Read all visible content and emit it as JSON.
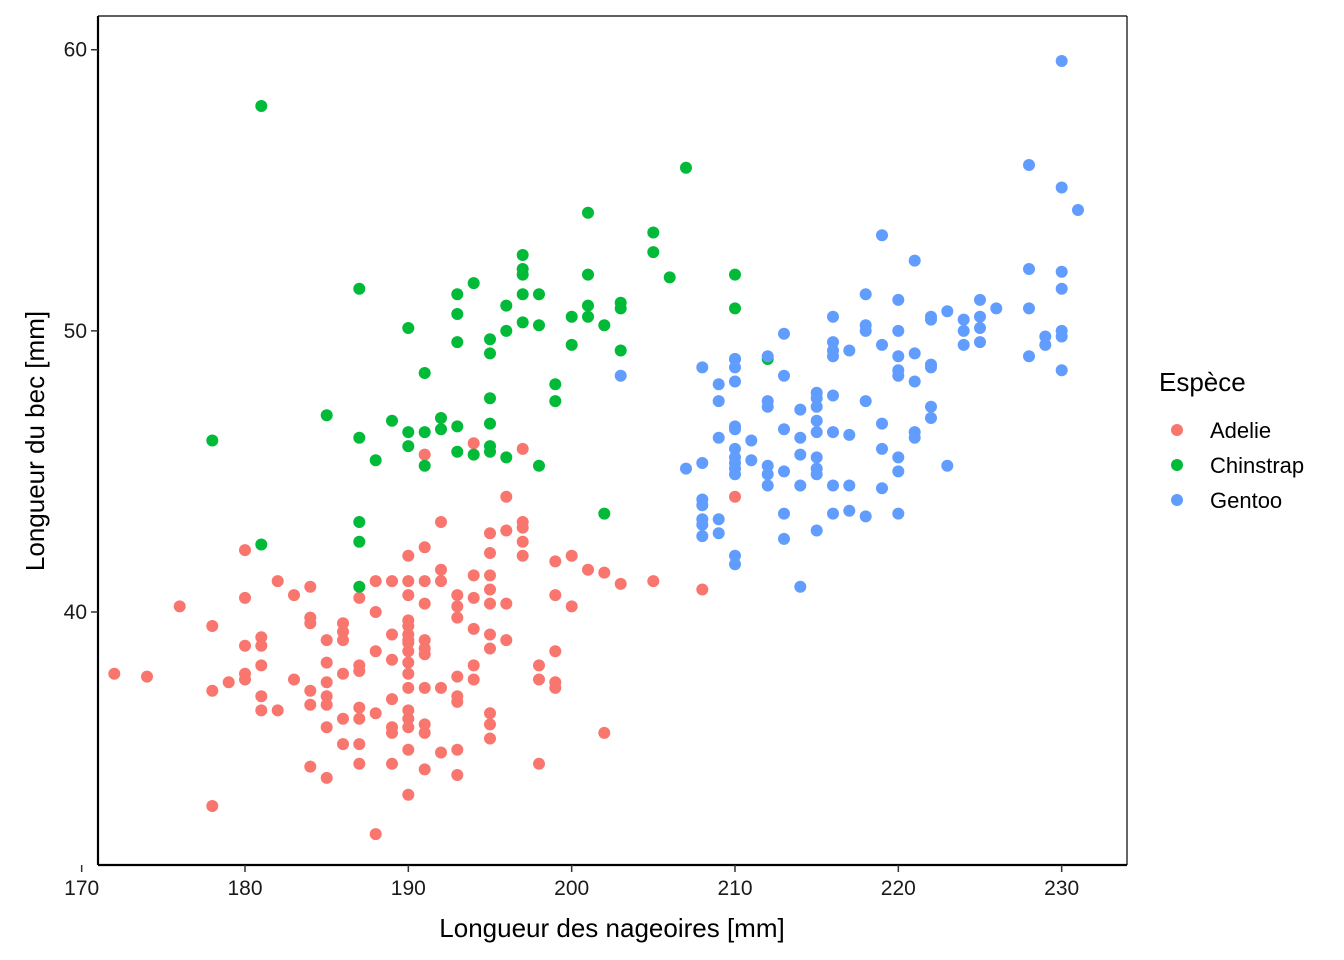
{
  "chart_data": {
    "type": "scatter",
    "title": "",
    "xlabel": "Longueur des nageoires  [mm]",
    "ylabel": "Longueur du bec  [mm]",
    "xlim": [
      171,
      234
    ],
    "ylim": [
      31,
      61.2
    ],
    "xticks": [
      170,
      180,
      190,
      200,
      210,
      220,
      230
    ],
    "yticks": [
      40,
      50,
      60
    ],
    "grid": false,
    "legend": {
      "title": "Espèce",
      "placement": "right"
    },
    "series": [
      {
        "name": "Adelie",
        "color": "#F8766D",
        "points": [
          [
            172,
            37.8
          ],
          [
            174,
            37.7
          ],
          [
            176,
            40.2
          ],
          [
            178,
            39.5
          ],
          [
            178,
            37.2
          ],
          [
            178,
            33.1
          ],
          [
            179,
            37.5
          ],
          [
            180,
            42.2
          ],
          [
            180,
            40.5
          ],
          [
            180,
            38.8
          ],
          [
            180,
            37.8
          ],
          [
            180,
            37.6
          ],
          [
            181,
            39.1
          ],
          [
            181,
            38.8
          ],
          [
            181,
            38.1
          ],
          [
            181,
            36.5
          ],
          [
            181,
            37.0
          ],
          [
            182,
            41.1
          ],
          [
            182,
            36.5
          ],
          [
            183,
            40.6
          ],
          [
            183,
            37.6
          ],
          [
            184,
            40.9
          ],
          [
            184,
            39.8
          ],
          [
            184,
            39.6
          ],
          [
            184,
            37.2
          ],
          [
            184,
            34.5
          ],
          [
            184,
            36.7
          ],
          [
            185,
            39.0
          ],
          [
            185,
            38.2
          ],
          [
            185,
            37.5
          ],
          [
            185,
            37.0
          ],
          [
            185,
            36.7
          ],
          [
            185,
            35.9
          ],
          [
            185,
            34.1
          ],
          [
            186,
            39.6
          ],
          [
            186,
            39.3
          ],
          [
            186,
            39.0
          ],
          [
            186,
            37.8
          ],
          [
            186,
            36.2
          ],
          [
            186,
            35.3
          ],
          [
            187,
            40.5
          ],
          [
            187,
            38.1
          ],
          [
            187,
            37.9
          ],
          [
            187,
            36.6
          ],
          [
            187,
            36.2
          ],
          [
            187,
            35.3
          ],
          [
            187,
            34.6
          ],
          [
            188,
            41.1
          ],
          [
            188,
            40.0
          ],
          [
            188,
            38.6
          ],
          [
            188,
            36.4
          ],
          [
            188,
            32.1
          ],
          [
            189,
            41.1
          ],
          [
            189,
            39.2
          ],
          [
            189,
            38.3
          ],
          [
            189,
            36.9
          ],
          [
            189,
            35.9
          ],
          [
            189,
            35.7
          ],
          [
            189,
            34.6
          ],
          [
            190,
            42.0
          ],
          [
            190,
            41.1
          ],
          [
            190,
            40.6
          ],
          [
            190,
            39.7
          ],
          [
            190,
            39.5
          ],
          [
            190,
            39.2
          ],
          [
            190,
            39.0
          ],
          [
            190,
            38.9
          ],
          [
            190,
            38.6
          ],
          [
            190,
            38.2
          ],
          [
            190,
            37.8
          ],
          [
            190,
            37.3
          ],
          [
            190,
            36.5
          ],
          [
            190,
            36.2
          ],
          [
            190,
            35.9
          ],
          [
            190,
            35.1
          ],
          [
            190,
            33.5
          ],
          [
            191,
            45.6
          ],
          [
            191,
            42.3
          ],
          [
            191,
            41.1
          ],
          [
            191,
            40.3
          ],
          [
            191,
            39.0
          ],
          [
            191,
            38.7
          ],
          [
            191,
            38.5
          ],
          [
            191,
            37.3
          ],
          [
            191,
            36.0
          ],
          [
            191,
            35.7
          ],
          [
            191,
            34.4
          ],
          [
            192,
            43.2
          ],
          [
            192,
            41.5
          ],
          [
            192,
            41.1
          ],
          [
            192,
            37.3
          ],
          [
            192,
            35.0
          ],
          [
            193,
            40.6
          ],
          [
            193,
            40.2
          ],
          [
            193,
            39.8
          ],
          [
            193,
            37.7
          ],
          [
            193,
            37.0
          ],
          [
            193,
            36.8
          ],
          [
            193,
            35.1
          ],
          [
            193,
            34.2
          ],
          [
            194,
            46.0
          ],
          [
            194,
            41.3
          ],
          [
            194,
            40.5
          ],
          [
            194,
            39.4
          ],
          [
            194,
            38.1
          ],
          [
            194,
            37.6
          ],
          [
            195,
            42.8
          ],
          [
            195,
            42.1
          ],
          [
            195,
            41.3
          ],
          [
            195,
            40.8
          ],
          [
            195,
            40.3
          ],
          [
            195,
            39.2
          ],
          [
            195,
            38.7
          ],
          [
            195,
            36.4
          ],
          [
            195,
            36.0
          ],
          [
            195,
            35.5
          ],
          [
            196,
            44.1
          ],
          [
            196,
            42.9
          ],
          [
            196,
            40.3
          ],
          [
            196,
            39.0
          ],
          [
            197,
            45.8
          ],
          [
            197,
            43.2
          ],
          [
            197,
            43.0
          ],
          [
            197,
            42.5
          ],
          [
            197,
            42.0
          ],
          [
            198,
            38.1
          ],
          [
            198,
            37.6
          ],
          [
            198,
            34.6
          ],
          [
            199,
            41.8
          ],
          [
            199,
            40.6
          ],
          [
            199,
            38.6
          ],
          [
            199,
            37.5
          ],
          [
            199,
            37.3
          ],
          [
            200,
            42.0
          ],
          [
            200,
            40.2
          ],
          [
            201,
            41.5
          ],
          [
            202,
            41.4
          ],
          [
            202,
            35.7
          ],
          [
            203,
            41.0
          ],
          [
            205,
            41.1
          ],
          [
            208,
            40.8
          ],
          [
            210,
            44.1
          ]
        ]
      },
      {
        "name": "Chinstrap",
        "color": "#00BA38",
        "points": [
          [
            178,
            46.1
          ],
          [
            181,
            58.0
          ],
          [
            181,
            42.4
          ],
          [
            185,
            47.0
          ],
          [
            187,
            51.5
          ],
          [
            187,
            46.2
          ],
          [
            187,
            43.2
          ],
          [
            187,
            42.5
          ],
          [
            187,
            40.9
          ],
          [
            188,
            45.4
          ],
          [
            189,
            46.8
          ],
          [
            190,
            50.1
          ],
          [
            190,
            46.4
          ],
          [
            190,
            45.9
          ],
          [
            191,
            48.5
          ],
          [
            191,
            46.4
          ],
          [
            191,
            45.2
          ],
          [
            192,
            46.9
          ],
          [
            192,
            46.5
          ],
          [
            193,
            51.3
          ],
          [
            193,
            50.6
          ],
          [
            193,
            49.6
          ],
          [
            193,
            46.6
          ],
          [
            193,
            45.7
          ],
          [
            194,
            51.7
          ],
          [
            194,
            45.6
          ],
          [
            195,
            49.7
          ],
          [
            195,
            49.2
          ],
          [
            195,
            47.6
          ],
          [
            195,
            46.7
          ],
          [
            195,
            45.9
          ],
          [
            195,
            45.7
          ],
          [
            196,
            50.9
          ],
          [
            196,
            50.0
          ],
          [
            196,
            45.5
          ],
          [
            197,
            52.7
          ],
          [
            197,
            52.2
          ],
          [
            197,
            52.0
          ],
          [
            197,
            51.3
          ],
          [
            197,
            50.3
          ],
          [
            198,
            51.3
          ],
          [
            198,
            50.2
          ],
          [
            198,
            45.2
          ],
          [
            199,
            48.1
          ],
          [
            199,
            47.5
          ],
          [
            200,
            50.5
          ],
          [
            200,
            49.5
          ],
          [
            201,
            54.2
          ],
          [
            201,
            52.0
          ],
          [
            201,
            50.9
          ],
          [
            201,
            50.5
          ],
          [
            202,
            50.2
          ],
          [
            202,
            43.5
          ],
          [
            203,
            51.0
          ],
          [
            203,
            50.8
          ],
          [
            203,
            49.3
          ],
          [
            205,
            53.5
          ],
          [
            205,
            52.8
          ],
          [
            206,
            51.9
          ],
          [
            207,
            55.8
          ],
          [
            210,
            52.0
          ],
          [
            210,
            50.8
          ],
          [
            210,
            49.0
          ],
          [
            212,
            49.0
          ]
        ]
      },
      {
        "name": "Gentoo",
        "color": "#619CFF",
        "points": [
          [
            203,
            48.4
          ],
          [
            207,
            45.1
          ],
          [
            208,
            48.7
          ],
          [
            208,
            45.3
          ],
          [
            208,
            44.0
          ],
          [
            208,
            43.8
          ],
          [
            208,
            43.3
          ],
          [
            208,
            43.1
          ],
          [
            208,
            42.7
          ],
          [
            209,
            48.1
          ],
          [
            209,
            47.5
          ],
          [
            209,
            46.2
          ],
          [
            209,
            43.3
          ],
          [
            209,
            42.8
          ],
          [
            210,
            49.0
          ],
          [
            210,
            48.7
          ],
          [
            210,
            48.2
          ],
          [
            210,
            46.6
          ],
          [
            210,
            46.5
          ],
          [
            210,
            45.8
          ],
          [
            210,
            45.5
          ],
          [
            210,
            45.3
          ],
          [
            210,
            45.1
          ],
          [
            210,
            44.9
          ],
          [
            210,
            42.0
          ],
          [
            210,
            41.7
          ],
          [
            211,
            46.1
          ],
          [
            211,
            45.4
          ],
          [
            212,
            49.1
          ],
          [
            212,
            47.5
          ],
          [
            212,
            47.3
          ],
          [
            212,
            45.2
          ],
          [
            212,
            44.9
          ],
          [
            212,
            44.5
          ],
          [
            213,
            49.9
          ],
          [
            213,
            48.4
          ],
          [
            213,
            46.5
          ],
          [
            213,
            45.0
          ],
          [
            213,
            43.5
          ],
          [
            213,
            42.6
          ],
          [
            214,
            47.2
          ],
          [
            214,
            46.2
          ],
          [
            214,
            45.6
          ],
          [
            214,
            44.5
          ],
          [
            214,
            40.9
          ],
          [
            215,
            47.8
          ],
          [
            215,
            47.6
          ],
          [
            215,
            47.3
          ],
          [
            215,
            46.8
          ],
          [
            215,
            46.4
          ],
          [
            215,
            45.5
          ],
          [
            215,
            45.1
          ],
          [
            215,
            44.9
          ],
          [
            215,
            42.9
          ],
          [
            216,
            50.5
          ],
          [
            216,
            49.6
          ],
          [
            216,
            49.3
          ],
          [
            216,
            49.1
          ],
          [
            216,
            47.7
          ],
          [
            216,
            46.4
          ],
          [
            216,
            44.5
          ],
          [
            216,
            43.5
          ],
          [
            217,
            49.3
          ],
          [
            217,
            46.3
          ],
          [
            217,
            44.5
          ],
          [
            217,
            43.6
          ],
          [
            218,
            51.3
          ],
          [
            218,
            50.2
          ],
          [
            218,
            50.0
          ],
          [
            218,
            47.5
          ],
          [
            218,
            43.4
          ],
          [
            219,
            53.4
          ],
          [
            219,
            49.5
          ],
          [
            219,
            46.7
          ],
          [
            219,
            45.8
          ],
          [
            219,
            44.4
          ],
          [
            220,
            51.1
          ],
          [
            220,
            50.0
          ],
          [
            220,
            49.1
          ],
          [
            220,
            48.6
          ],
          [
            220,
            48.4
          ],
          [
            220,
            45.5
          ],
          [
            220,
            45.0
          ],
          [
            220,
            43.5
          ],
          [
            221,
            52.5
          ],
          [
            221,
            49.2
          ],
          [
            221,
            48.2
          ],
          [
            221,
            46.4
          ],
          [
            221,
            46.2
          ],
          [
            222,
            50.5
          ],
          [
            222,
            50.4
          ],
          [
            222,
            48.8
          ],
          [
            222,
            48.7
          ],
          [
            222,
            47.3
          ],
          [
            222,
            46.9
          ],
          [
            223,
            50.7
          ],
          [
            223,
            45.2
          ],
          [
            224,
            50.4
          ],
          [
            224,
            50.0
          ],
          [
            224,
            49.5
          ],
          [
            225,
            51.1
          ],
          [
            225,
            50.5
          ],
          [
            225,
            50.1
          ],
          [
            225,
            49.6
          ],
          [
            226,
            50.8
          ],
          [
            228,
            55.9
          ],
          [
            228,
            52.2
          ],
          [
            228,
            50.8
          ],
          [
            228,
            49.1
          ],
          [
            229,
            49.8
          ],
          [
            229,
            49.5
          ],
          [
            230,
            59.6
          ],
          [
            230,
            55.1
          ],
          [
            230,
            52.1
          ],
          [
            230,
            51.5
          ],
          [
            230,
            50.0
          ],
          [
            230,
            49.8
          ],
          [
            230,
            48.6
          ],
          [
            231,
            54.3
          ]
        ]
      }
    ]
  }
}
